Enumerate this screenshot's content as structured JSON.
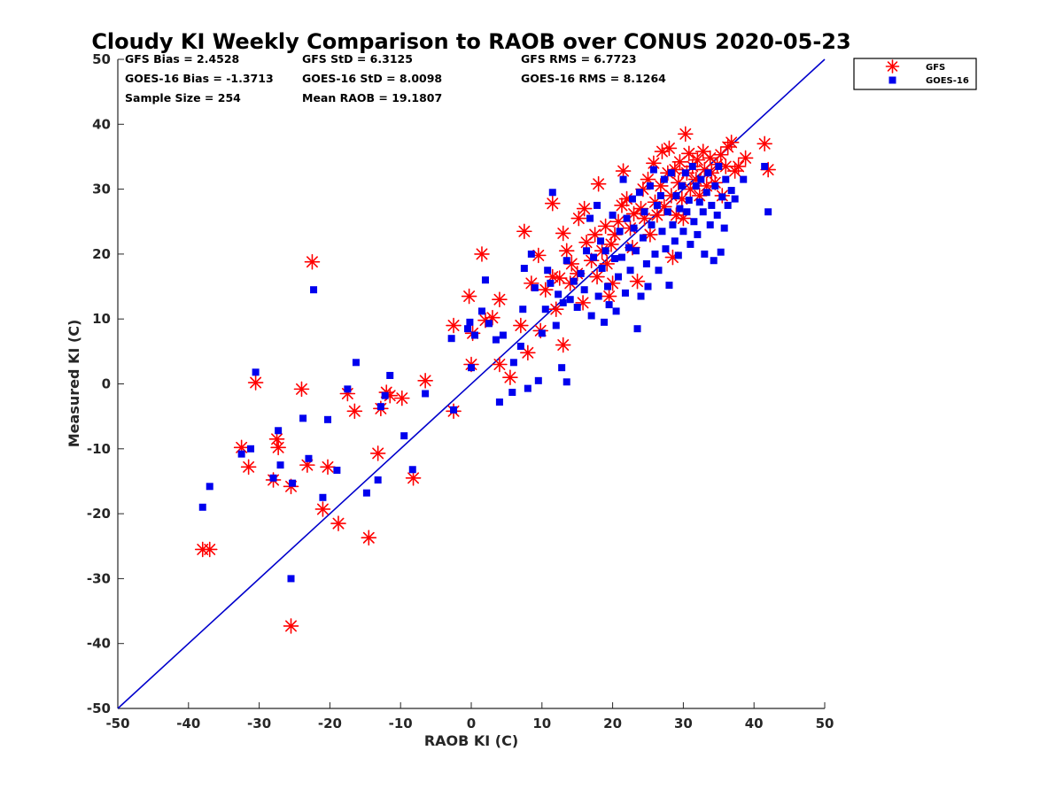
{
  "stats": [
    {
      "label": "GFS Bias = 2.4528"
    },
    {
      "label": "GFS StD = 6.3125"
    },
    {
      "label": "GFS RMS = 6.7723"
    },
    {
      "label": "GOES-16 Bias = -1.3713"
    },
    {
      "label": "GOES-16 StD = 8.0098"
    },
    {
      "label": "GOES-16 RMS = 8.1264"
    },
    {
      "label": "Sample Size = 254"
    },
    {
      "label": "Mean RAOB = 19.1807"
    }
  ],
  "chart_data": {
    "type": "scatter",
    "title": "Cloudy KI Weekly Comparison to RAOB over CONUS 2020-05-23",
    "xlabel": "RAOB KI (C)",
    "ylabel": "Measured KI (C)",
    "xlim": [
      -50,
      50
    ],
    "ylim": [
      -50,
      50
    ],
    "xticks": [
      -50,
      -40,
      -30,
      -20,
      -10,
      0,
      10,
      20,
      30,
      40,
      50
    ],
    "yticks": [
      -50,
      -40,
      -30,
      -20,
      -10,
      0,
      10,
      20,
      30,
      40,
      50
    ],
    "grid": false,
    "legend_position": "outside-top-right",
    "reference_line": {
      "x": [
        -50,
        50
      ],
      "y": [
        -50,
        50
      ],
      "color": "#0000cc"
    },
    "series": [
      {
        "name": "GFS",
        "marker": "asterisk",
        "color": "#ff0000",
        "points": [
          [
            -38,
            -25.5
          ],
          [
            -37,
            -25.5
          ],
          [
            -32.5,
            -9.8
          ],
          [
            -31.5,
            -12.8
          ],
          [
            -30.5,
            0.2
          ],
          [
            -28,
            -14.8
          ],
          [
            -27.5,
            -8.5
          ],
          [
            -27.3,
            -9.8
          ],
          [
            -25.5,
            -15.8
          ],
          [
            -25.5,
            -37.3
          ],
          [
            -24,
            -0.8
          ],
          [
            -23.2,
            -12.5
          ],
          [
            -22.5,
            18.8
          ],
          [
            -21,
            -19.3
          ],
          [
            -20.3,
            -12.8
          ],
          [
            -18.8,
            -21.5
          ],
          [
            -17.5,
            -1.5
          ],
          [
            -16.5,
            -4.2
          ],
          [
            -14.5,
            -23.7
          ],
          [
            -13.2,
            -10.7
          ],
          [
            -12.8,
            -3.8
          ],
          [
            -12,
            -1.3
          ],
          [
            -11.5,
            -1.8
          ],
          [
            -9.8,
            -2.2
          ],
          [
            -8.2,
            -14.5
          ],
          [
            -6.5,
            0.5
          ],
          [
            -2.5,
            9
          ],
          [
            -2.5,
            -4.2
          ],
          [
            -0.3,
            13.5
          ],
          [
            0,
            3
          ],
          [
            0.2,
            7.8
          ],
          [
            1.5,
            20
          ],
          [
            2,
            9.8
          ],
          [
            3,
            10.2
          ],
          [
            4,
            3
          ],
          [
            4,
            13
          ],
          [
            5.5,
            1
          ],
          [
            7,
            9
          ],
          [
            7.5,
            23.5
          ],
          [
            8,
            4.8
          ],
          [
            8.5,
            15.5
          ],
          [
            9.5,
            19.8
          ],
          [
            9.8,
            8.2
          ],
          [
            10.5,
            14.5
          ],
          [
            11.5,
            16.5
          ],
          [
            11.5,
            27.8
          ],
          [
            12,
            11.5
          ],
          [
            12.5,
            16.3
          ],
          [
            13,
            6
          ],
          [
            13,
            23.2
          ],
          [
            13.5,
            20.5
          ],
          [
            14,
            15.5
          ],
          [
            14.2,
            18.5
          ],
          [
            15,
            17
          ],
          [
            15.2,
            25.5
          ],
          [
            15.8,
            12.5
          ],
          [
            16,
            27
          ],
          [
            16.3,
            21.8
          ],
          [
            17,
            19
          ],
          [
            17.5,
            23
          ],
          [
            17.8,
            16.5
          ],
          [
            18,
            30.8
          ],
          [
            18.5,
            20.5
          ],
          [
            19,
            24.3
          ],
          [
            19.2,
            18.5
          ],
          [
            19.5,
            13.5
          ],
          [
            19.8,
            21.5
          ],
          [
            20,
            15.5
          ],
          [
            20.3,
            23
          ],
          [
            20.8,
            25
          ],
          [
            21.3,
            27.5
          ],
          [
            21.5,
            32.8
          ],
          [
            22,
            28.5
          ],
          [
            22.5,
            24
          ],
          [
            22.8,
            21
          ],
          [
            23,
            26.2
          ],
          [
            23.5,
            15.8
          ],
          [
            24,
            27
          ],
          [
            24.3,
            30
          ],
          [
            24.5,
            25.5
          ],
          [
            25,
            31.5
          ],
          [
            25.3,
            23
          ],
          [
            25.8,
            34
          ],
          [
            26,
            28
          ],
          [
            26.3,
            26
          ],
          [
            26.8,
            30.5
          ],
          [
            27,
            35.8
          ],
          [
            27.3,
            27.3
          ],
          [
            27.8,
            32.5
          ],
          [
            28,
            36.3
          ],
          [
            28.3,
            29
          ],
          [
            28.5,
            19.5
          ],
          [
            28.8,
            33
          ],
          [
            29,
            26
          ],
          [
            29.3,
            31
          ],
          [
            29.5,
            34.2
          ],
          [
            29.8,
            28.5
          ],
          [
            30,
            25.5
          ],
          [
            30.3,
            38.5
          ],
          [
            30.5,
            32.5
          ],
          [
            30.8,
            35.5
          ],
          [
            31,
            30
          ],
          [
            31.3,
            33.5
          ],
          [
            31.8,
            31.5
          ],
          [
            32,
            34.5
          ],
          [
            32.3,
            29
          ],
          [
            32.8,
            35.8
          ],
          [
            33,
            33
          ],
          [
            33.3,
            30.5
          ],
          [
            33.8,
            34.8
          ],
          [
            34,
            32.5
          ],
          [
            34.5,
            31
          ],
          [
            34.8,
            33.8
          ],
          [
            35.3,
            35.3
          ],
          [
            35.5,
            29
          ],
          [
            36,
            33.5
          ],
          [
            36.3,
            36.5
          ],
          [
            36.8,
            37.2
          ],
          [
            37.3,
            32.8
          ],
          [
            37.8,
            33.5
          ],
          [
            38.8,
            34.8
          ],
          [
            41.5,
            37
          ],
          [
            42,
            33
          ]
        ]
      },
      {
        "name": "GOES-16",
        "marker": "square",
        "color": "#0000ee",
        "points": [
          [
            -38,
            -19
          ],
          [
            -37,
            -15.8
          ],
          [
            -32.5,
            -10.8
          ],
          [
            -31.2,
            -10
          ],
          [
            -30.5,
            1.8
          ],
          [
            -28,
            -14.5
          ],
          [
            -27.3,
            -7.2
          ],
          [
            -27,
            -12.5
          ],
          [
            -25.5,
            -30
          ],
          [
            -25.3,
            -15.3
          ],
          [
            -23.8,
            -5.3
          ],
          [
            -23,
            -11.5
          ],
          [
            -22.3,
            14.5
          ],
          [
            -21,
            -17.5
          ],
          [
            -20.3,
            -5.5
          ],
          [
            -19,
            -13.3
          ],
          [
            -17.5,
            -0.8
          ],
          [
            -16.3,
            3.3
          ],
          [
            -14.8,
            -16.8
          ],
          [
            -13.2,
            -14.8
          ],
          [
            -12.8,
            -3.5
          ],
          [
            -12.2,
            -1.8
          ],
          [
            -11.5,
            1.3
          ],
          [
            -9.5,
            -8
          ],
          [
            -8.3,
            -13.2
          ],
          [
            -6.5,
            -1.5
          ],
          [
            -2.8,
            7
          ],
          [
            -2.5,
            -4
          ],
          [
            -0.5,
            8.5
          ],
          [
            -0.2,
            9.5
          ],
          [
            0,
            2.5
          ],
          [
            0.5,
            7.5
          ],
          [
            1.5,
            11.2
          ],
          [
            2,
            16
          ],
          [
            2.5,
            9.3
          ],
          [
            3.5,
            6.8
          ],
          [
            4,
            -2.8
          ],
          [
            4.5,
            7.5
          ],
          [
            5.8,
            -1.3
          ],
          [
            6,
            3.3
          ],
          [
            7,
            5.8
          ],
          [
            7.3,
            11.5
          ],
          [
            7.5,
            17.8
          ],
          [
            8,
            -0.7
          ],
          [
            8.5,
            20
          ],
          [
            9,
            14.8
          ],
          [
            9.5,
            0.5
          ],
          [
            10,
            7.8
          ],
          [
            10.5,
            11.5
          ],
          [
            10.8,
            17.5
          ],
          [
            11.2,
            15.5
          ],
          [
            11.5,
            29.5
          ],
          [
            12,
            9
          ],
          [
            12.3,
            13.8
          ],
          [
            12.8,
            2.5
          ],
          [
            13,
            12.5
          ],
          [
            13.5,
            0.3
          ],
          [
            13.5,
            19
          ],
          [
            14,
            13
          ],
          [
            14.5,
            15.8
          ],
          [
            15,
            11.8
          ],
          [
            15.5,
            17
          ],
          [
            16,
            14.5
          ],
          [
            16.3,
            20.5
          ],
          [
            16.8,
            25.5
          ],
          [
            17,
            10.5
          ],
          [
            17.3,
            19.5
          ],
          [
            17.8,
            27.5
          ],
          [
            18,
            13.5
          ],
          [
            18.3,
            22
          ],
          [
            18.5,
            17.8
          ],
          [
            18.8,
            9.5
          ],
          [
            19,
            20.5
          ],
          [
            19.3,
            15
          ],
          [
            19.5,
            12.2
          ],
          [
            20,
            26
          ],
          [
            20.3,
            19.3
          ],
          [
            20.5,
            11.2
          ],
          [
            20.8,
            16.5
          ],
          [
            21,
            23.5
          ],
          [
            21.3,
            19.5
          ],
          [
            21.5,
            31.5
          ],
          [
            21.8,
            14
          ],
          [
            22,
            25.5
          ],
          [
            22.3,
            21
          ],
          [
            22.5,
            17.5
          ],
          [
            22.8,
            28.5
          ],
          [
            23,
            24
          ],
          [
            23.3,
            20.5
          ],
          [
            23.5,
            8.5
          ],
          [
            23.8,
            29.5
          ],
          [
            24,
            13.5
          ],
          [
            24.3,
            22.5
          ],
          [
            24.5,
            26.5
          ],
          [
            24.8,
            18.5
          ],
          [
            25,
            15
          ],
          [
            25.3,
            30.5
          ],
          [
            25.5,
            24.5
          ],
          [
            25.8,
            33
          ],
          [
            26,
            20
          ],
          [
            26.3,
            27.5
          ],
          [
            26.5,
            17.5
          ],
          [
            26.8,
            29
          ],
          [
            27,
            23.5
          ],
          [
            27.3,
            31.5
          ],
          [
            27.5,
            20.8
          ],
          [
            27.8,
            26.5
          ],
          [
            28,
            15.2
          ],
          [
            28.3,
            32.5
          ],
          [
            28.5,
            24.5
          ],
          [
            28.8,
            22
          ],
          [
            29,
            29
          ],
          [
            29.3,
            19.8
          ],
          [
            29.5,
            27
          ],
          [
            29.8,
            30.5
          ],
          [
            30,
            23.5
          ],
          [
            30.3,
            32.5
          ],
          [
            30.5,
            26.5
          ],
          [
            30.8,
            28.3
          ],
          [
            31,
            21.5
          ],
          [
            31.3,
            33.5
          ],
          [
            31.5,
            25
          ],
          [
            31.8,
            30.5
          ],
          [
            32,
            23
          ],
          [
            32.3,
            28
          ],
          [
            32.5,
            31.5
          ],
          [
            32.8,
            26.5
          ],
          [
            33,
            20
          ],
          [
            33.3,
            29.5
          ],
          [
            33.5,
            32.5
          ],
          [
            33.8,
            24.5
          ],
          [
            34,
            27.5
          ],
          [
            34.3,
            19
          ],
          [
            34.5,
            30.5
          ],
          [
            34.8,
            26
          ],
          [
            35,
            33.5
          ],
          [
            35.3,
            20.3
          ],
          [
            35.5,
            28.8
          ],
          [
            35.8,
            24
          ],
          [
            36,
            31.5
          ],
          [
            36.3,
            27.5
          ],
          [
            36.8,
            29.8
          ],
          [
            37.3,
            28.5
          ],
          [
            38.5,
            31.5
          ],
          [
            41.5,
            33.5
          ],
          [
            42,
            26.5
          ]
        ]
      }
    ]
  }
}
